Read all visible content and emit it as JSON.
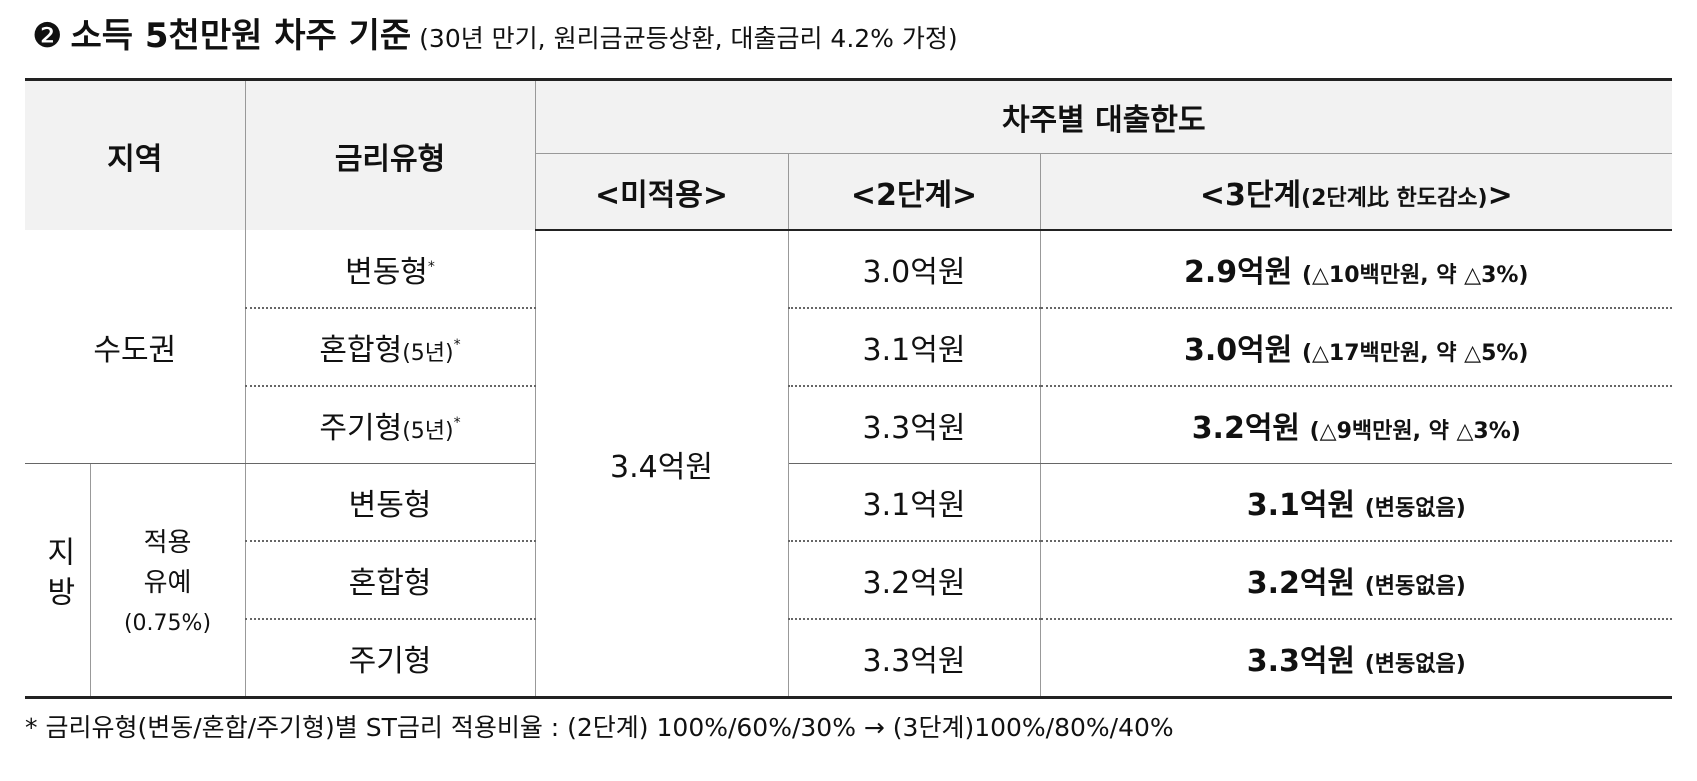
{
  "title": {
    "marker": "❷",
    "main": "소득 5천만원 차주 기준",
    "note": "(30년 만기, 원리금균등상환, 대출금리 4.2% 가정)"
  },
  "table": {
    "header": {
      "region": "지역",
      "rate_type": "금리유형",
      "limit": "차주별 대출한도",
      "uncapped": "<미적용>",
      "stage2": "<2단계>",
      "stage3_open": "<3단계",
      "stage3_note": "(2단계比 한도감소)",
      "stage3_close": ">"
    },
    "groups": [
      {
        "region": "수도권",
        "rows": [
          {
            "rate_type": "변동형",
            "detail": "",
            "mark": "*",
            "stage2": "3.0억원",
            "stage3_amount": "2.9억원",
            "stage3_note": "(△10백만원, 약 △3%)"
          },
          {
            "rate_type": "혼합형",
            "detail": "(5년)",
            "mark": "*",
            "stage2": "3.1억원",
            "stage3_amount": "3.0억원",
            "stage3_note": "(△17백만원, 약 △5%)"
          },
          {
            "rate_type": "주기형",
            "detail": "(5년)",
            "mark": "*",
            "stage2": "3.3억원",
            "stage3_amount": "3.2억원",
            "stage3_note": "(△9백만원, 약 △3%)"
          }
        ]
      },
      {
        "region": "지방",
        "subregion": "적용 유예",
        "subregion_rate": "(0.75%)",
        "rows": [
          {
            "rate_type": "변동형",
            "stage2": "3.1억원",
            "stage3_amount": "3.1억원",
            "stage3_note": "(변동없음)"
          },
          {
            "rate_type": "혼합형",
            "stage2": "3.2억원",
            "stage3_amount": "3.2억원",
            "stage3_note": "(변동없음)"
          },
          {
            "rate_type": "주기형",
            "stage2": "3.3억원",
            "stage3_amount": "3.3억원",
            "stage3_note": "(변동없음)"
          }
        ]
      }
    ],
    "uncapped": "3.4억원"
  },
  "footnote": "* 금리유형(변동/혼합/주기형)별 ST금리 적용비율 : (2단계) 100%/60%/30% → (3단계)100%/80%/40%"
}
